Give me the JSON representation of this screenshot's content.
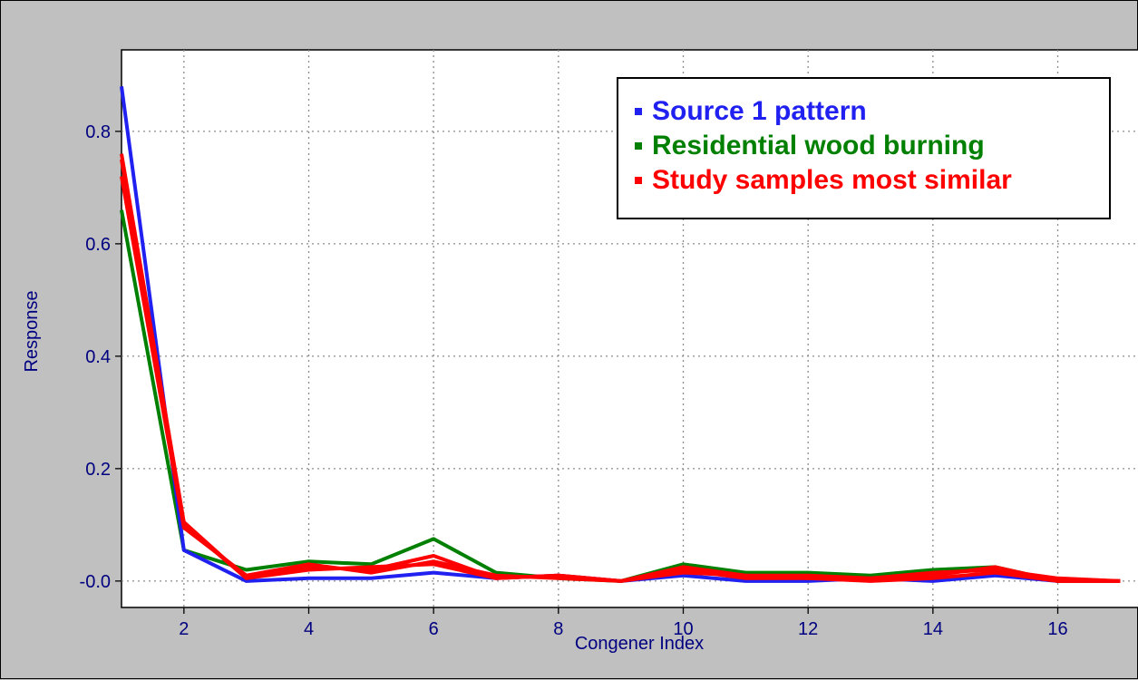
{
  "chart_data": {
    "type": "line",
    "title": "",
    "xlabel": "Congener Index",
    "ylabel": "Response",
    "xlim": [
      1,
      17.3
    ],
    "ylim": [
      -0.047,
      0.945
    ],
    "xticks": [
      2,
      4,
      6,
      8,
      10,
      12,
      14,
      16
    ],
    "yticks": [
      0.0,
      0.2,
      0.4,
      0.6,
      0.8
    ],
    "ytick_labels": [
      "-0.0",
      "0.2",
      "0.4",
      "0.6",
      "0.8"
    ],
    "grid": true,
    "legend_position": "top-right",
    "x": [
      1,
      2,
      3,
      4,
      5,
      6,
      7,
      8,
      9,
      10,
      11,
      12,
      13,
      14,
      15,
      16,
      17
    ],
    "legend": [
      {
        "label": "Source 1 pattern",
        "color": "#2020f0"
      },
      {
        "label": "Residential wood burning",
        "color": "#008000"
      },
      {
        "label": "Study samples most similar",
        "color": "#ff0000"
      }
    ],
    "series": [
      {
        "name": "Source 1 pattern",
        "color": "#2020f0",
        "values": [
          0.88,
          0.055,
          0.0,
          0.005,
          0.005,
          0.015,
          0.005,
          0.01,
          0.0,
          0.01,
          0.0,
          0.0,
          0.005,
          0.0,
          0.01,
          0.0,
          0.0
        ]
      },
      {
        "name": "Residential wood burning",
        "color": "#008000",
        "values": [
          0.66,
          0.055,
          0.02,
          0.035,
          0.03,
          0.075,
          0.015,
          0.005,
          0.0,
          0.03,
          0.015,
          0.015,
          0.01,
          0.02,
          0.025,
          0.0,
          0.0
        ]
      },
      {
        "name": "Study samples most similar",
        "color": "#ff0000",
        "values": [
          0.76,
          0.105,
          0.005,
          0.025,
          0.02,
          0.045,
          0.005,
          0.01,
          0.0,
          0.025,
          0.01,
          0.01,
          0.005,
          0.01,
          0.025,
          0.0,
          0.0
        ]
      },
      {
        "name": "",
        "color": "#ff0000",
        "values": [
          0.72,
          0.095,
          0.01,
          0.03,
          0.015,
          0.035,
          0.01,
          0.005,
          0.0,
          0.02,
          0.005,
          0.005,
          0.005,
          0.015,
          0.02,
          0.005,
          0.0
        ]
      },
      {
        "name": "",
        "color": "#ff0000",
        "values": [
          0.75,
          0.1,
          0.005,
          0.02,
          0.025,
          0.03,
          0.005,
          0.01,
          0.0,
          0.015,
          0.01,
          0.005,
          0.0,
          0.005,
          0.015,
          0.0,
          0.0
        ]
      }
    ]
  }
}
